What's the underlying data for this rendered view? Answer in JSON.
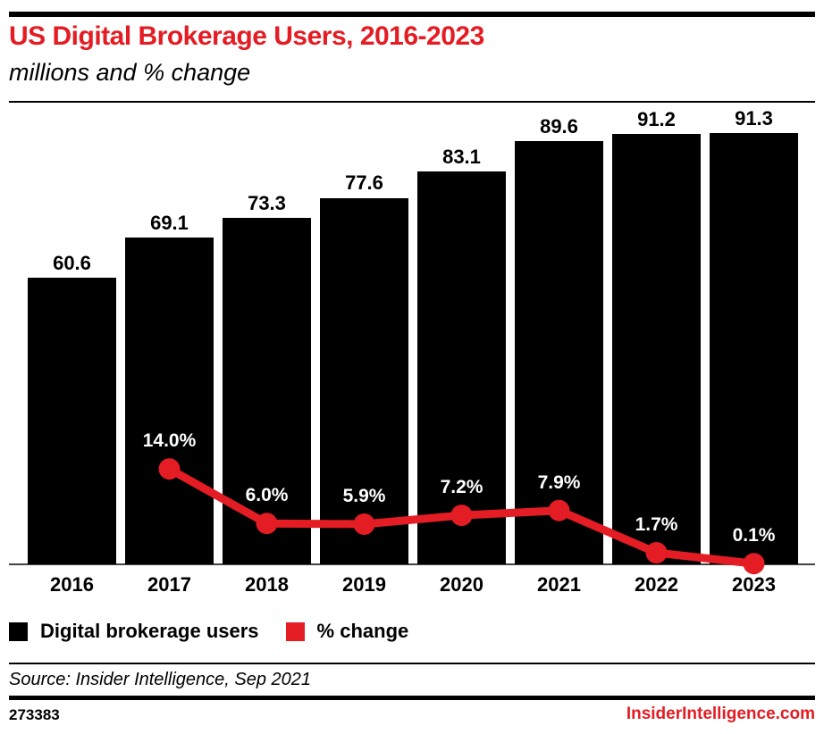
{
  "header": {
    "title": "US Digital Brokerage Users, 2016-2023",
    "subtitle": "millions and % change"
  },
  "chart_data": {
    "type": "bar",
    "title": "US Digital Brokerage Users, 2016-2023",
    "subtitle": "millions and % change",
    "categories": [
      "2016",
      "2017",
      "2018",
      "2019",
      "2020",
      "2021",
      "2022",
      "2023"
    ],
    "series": [
      {
        "name": "Digital brokerage users",
        "type": "bar",
        "unit": "millions",
        "color": "#000000",
        "values": [
          60.6,
          69.1,
          73.3,
          77.6,
          83.1,
          89.6,
          91.2,
          91.3
        ]
      },
      {
        "name": "% change",
        "type": "line",
        "unit": "percent",
        "color": "#e41c23",
        "values": [
          null,
          14.0,
          6.0,
          5.9,
          7.2,
          7.9,
          1.7,
          0.1
        ]
      }
    ],
    "bar_labels": [
      "60.6",
      "69.1",
      "73.3",
      "77.6",
      "83.1",
      "89.6",
      "91.2",
      "91.3"
    ],
    "line_labels": [
      null,
      "14.0%",
      "6.0%",
      "5.9%",
      "7.2%",
      "7.9%",
      "1.7%",
      "0.1%"
    ],
    "bar_axis_max": 91.3,
    "grid": false,
    "legend_position": "bottom"
  },
  "legend": [
    {
      "label": "Digital brokerage users",
      "color": "#000000"
    },
    {
      "label": "% change",
      "color": "#e41c23"
    }
  ],
  "footer": {
    "source": "Source: Insider Intelligence, Sep 2021",
    "chart_id": "273383",
    "site": "InsiderIntelligence.com"
  },
  "colors": {
    "accent_red": "#e41c23",
    "bar_black": "#000000",
    "axis_line": "#434343",
    "pct_label_text": "#ffffff"
  }
}
